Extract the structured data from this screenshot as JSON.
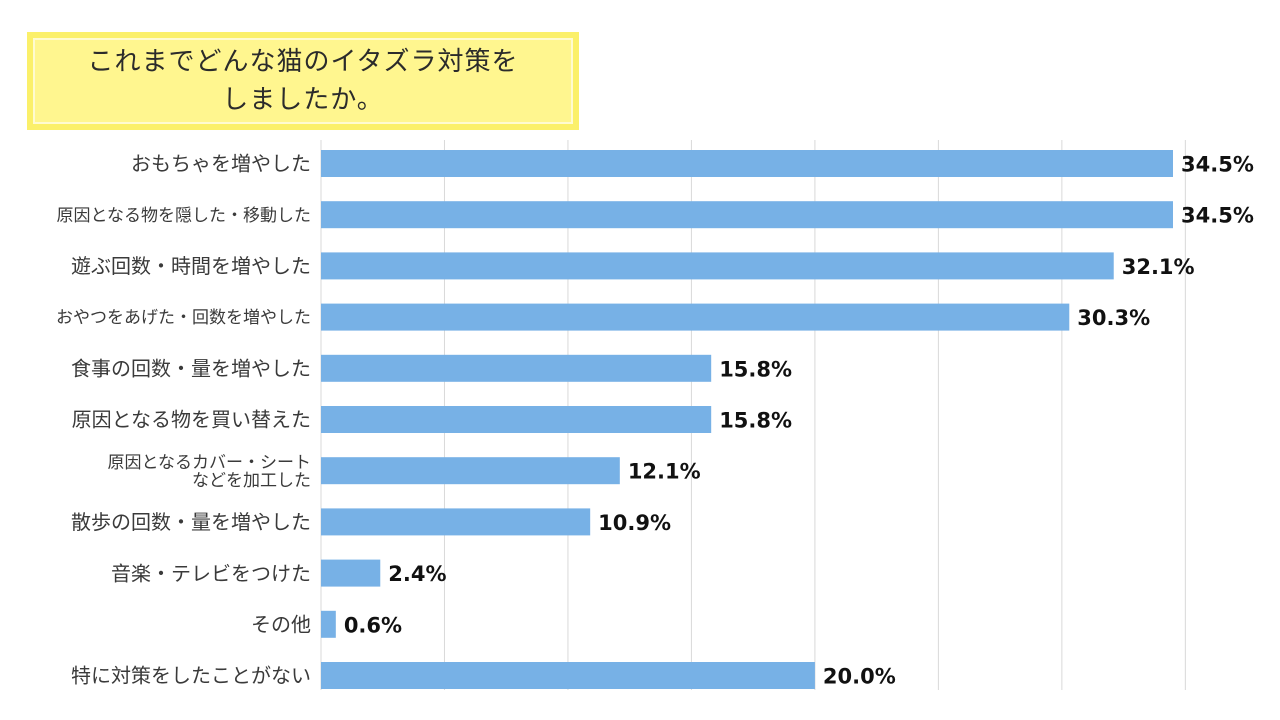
{
  "chart_data": {
    "type": "bar",
    "orientation": "horizontal",
    "title": "これまでどんな猫のイタズラ対策を\nしましたか。",
    "categories": [
      "おもちゃを増やした",
      "原因となる物を隠した・移動した",
      "遊ぶ回数・時間を増やした",
      "おやつをあげた・回数を増やした",
      "食事の回数・量を増やした",
      "原因となる物を買い替えた",
      "原因となるカバー・シート\nなどを加工した",
      "散歩の回数・量を増やした",
      "音楽・テレビをつけた",
      "その他",
      "特に対策をしたことがない"
    ],
    "values": [
      34.5,
      34.5,
      32.1,
      30.3,
      15.8,
      15.8,
      12.1,
      10.9,
      2.4,
      0.6,
      20.0
    ],
    "value_labels": [
      "34.5%",
      "34.5%",
      "32.1%",
      "30.3%",
      "15.8%",
      "15.8%",
      "12.1%",
      "10.9%",
      "2.4%",
      "0.6%",
      "20.0%"
    ],
    "xlim": [
      0,
      35
    ],
    "grid_step": 5,
    "grid": true,
    "bar_color": "#77b1e6",
    "grid_color": "#d9d9d9",
    "title_bg_color": "#fff68f",
    "title_border_color": "#fbf06a"
  }
}
